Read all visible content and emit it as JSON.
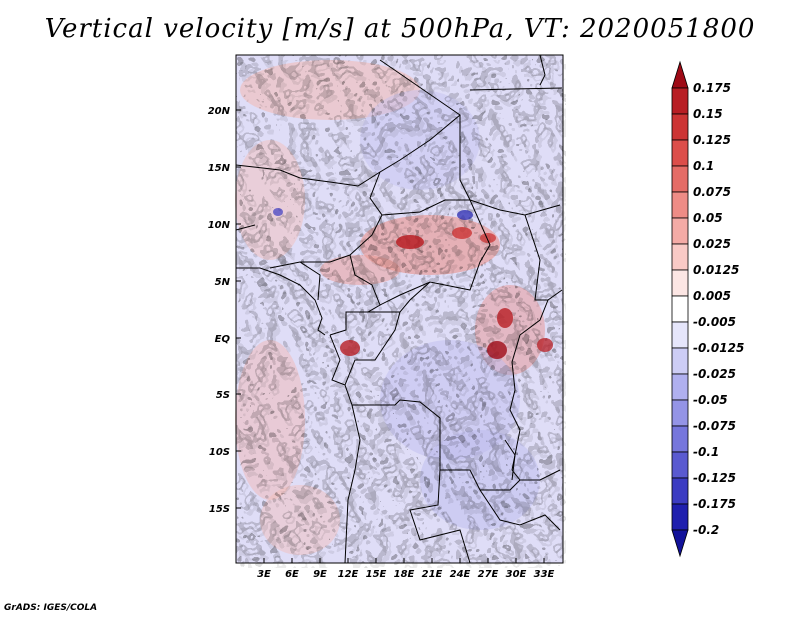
{
  "title": "Vertical velocity [m/s] at 500hPa, VT: 2020051800",
  "credit": "GrADS: IGES/COLA",
  "map": {
    "lat_labels": [
      "20N",
      "15N",
      "10N",
      "5N",
      "EQ",
      "5S",
      "10S",
      "15S"
    ],
    "lon_labels": [
      "3E",
      "6E",
      "9E",
      "12E",
      "15E",
      "18E",
      "21E",
      "24E",
      "27E",
      "30E",
      "33E"
    ]
  },
  "colorbar": {
    "labels": [
      "0.175",
      "0.15",
      "0.125",
      "0.1",
      "0.075",
      "0.05",
      "0.025",
      "0.0125",
      "0.005",
      "-0.005",
      "-0.0125",
      "-0.025",
      "-0.05",
      "-0.075",
      "-0.1",
      "-0.125",
      "-0.175",
      "-0.2"
    ],
    "colors": [
      "#9e0a16",
      "#b81e24",
      "#cc3434",
      "#dc4e4a",
      "#e56c66",
      "#ee8c86",
      "#f4aba6",
      "#f9cac6",
      "#fce6e4",
      "#ffffff",
      "#e6e6fb",
      "#cdcdf5",
      "#b0b0ef",
      "#9494e6",
      "#7676dc",
      "#5a5ad0",
      "#3c3cc2",
      "#1f1fae",
      "#12129a"
    ]
  }
}
